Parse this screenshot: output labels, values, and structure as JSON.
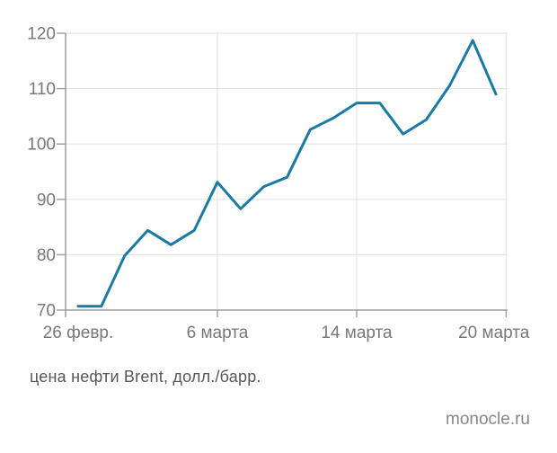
{
  "page": {
    "background": "#ffffff",
    "caption": "цена нефти Brent, долл./барр.",
    "source": "monocle.ru"
  },
  "chart_data": {
    "type": "line",
    "title": "",
    "caption": "цена нефти Brent, долл./барр.",
    "source_label": "monocle.ru",
    "series": [
      {
        "name": "Brent price",
        "color": "#1a7aa6",
        "values": [
          70.7,
          70.7,
          79.8,
          84.4,
          81.8,
          84.4,
          93.1,
          88.3,
          92.3,
          94.0,
          102.6,
          104.7,
          107.4,
          107.4,
          101.8,
          104.4,
          110.5,
          118.7,
          109.0
        ]
      }
    ],
    "x_ticks": [
      {
        "label": "26 февр.",
        "point_index": 0
      },
      {
        "label": "6 марта",
        "point_index": 6
      },
      {
        "label": "14 марта",
        "point_index": 12
      },
      {
        "label": "20 марта",
        "point_index": 18.44
      }
    ],
    "y_ticks": [
      70,
      80,
      90,
      100,
      110,
      120
    ],
    "ylim": [
      70,
      120
    ],
    "grid": true,
    "legend": false,
    "colors": {
      "line": "#1a7aa6",
      "axis": "#9a9c9e",
      "gridline": "#e3e4e5",
      "tick_label": "#77787b",
      "caption_text": "#56575a",
      "source_text": "#85878a"
    }
  }
}
